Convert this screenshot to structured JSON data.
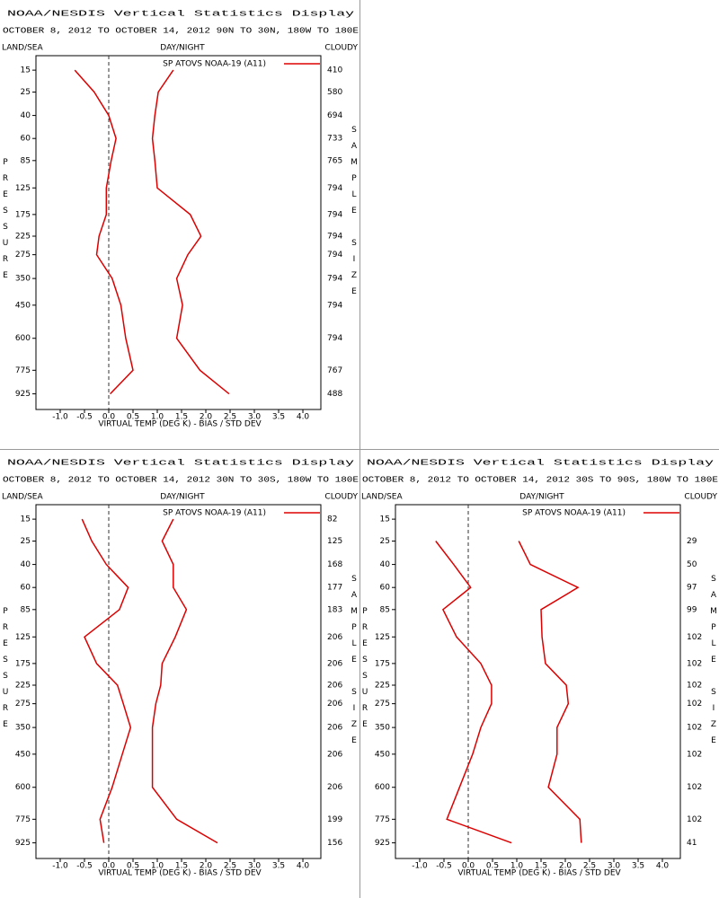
{
  "chart_data": [
    {
      "type": "line",
      "title": "NOAA/NESDIS Vertical Statistics Display",
      "subtitle": "OCTOBER 8, 2012 TO OCTOBER 14, 2012 90N TO 30N, 180W TO 180E",
      "land_sea": "LAND/SEA",
      "day_night": "DAY/NIGHT",
      "cloudy": "CLOUDY",
      "y_label": "PRESSURE",
      "y2_label": "SAMPLE SIZE",
      "x_label": "VIRTUAL TEMP (DEG K) - BIAS / STD DEV",
      "categories": [
        15,
        25,
        40,
        60,
        85,
        125,
        175,
        225,
        275,
        350,
        450,
        600,
        775,
        925
      ],
      "sample_size": [
        410,
        580,
        694,
        733,
        765,
        794,
        794,
        794,
        794,
        794,
        794,
        794,
        767,
        488
      ],
      "series": [
        {
          "name": "SP ATOVS NOAA-19 (A11)",
          "color": "#dd0000",
          "bias": [
            -0.7,
            -0.3,
            0.0,
            0.15,
            0.05,
            -0.05,
            -0.05,
            -0.2,
            -0.25,
            0.07,
            0.25,
            0.35,
            0.5,
            0.03
          ],
          "std_dev": [
            1.33,
            1.02,
            0.95,
            0.9,
            0.95,
            1.0,
            1.68,
            1.9,
            1.63,
            1.4,
            1.52,
            1.4,
            1.88,
            2.48
          ]
        }
      ],
      "xlim": [
        -1.5,
        4.37
      ],
      "ylim": [
        10.2,
        1035
      ],
      "xticks": [
        {
          "value": -1,
          "label": "-1.0"
        },
        {
          "value": -0.5,
          "label": "-0.5"
        },
        {
          "value": 0,
          "label": "0.0"
        },
        {
          "value": 0.5,
          "label": "0.5"
        },
        {
          "value": 1,
          "label": "1.0"
        },
        {
          "value": 1.5,
          "label": "1.5"
        },
        {
          "value": 2,
          "label": "2.0"
        },
        {
          "value": 2.5,
          "label": "2.5"
        },
        {
          "value": 3,
          "label": "3.0"
        },
        {
          "value": 3.5,
          "label": "3.5"
        },
        {
          "value": 4,
          "label": "4.0"
        }
      ]
    },
    {
      "type": "line",
      "title": "NOAA/NESDIS Vertical Statistics Display",
      "subtitle": "OCTOBER 8, 2012 TO OCTOBER 14, 2012 30N TO 30S, 180W TO 180E",
      "land_sea": "LAND/SEA",
      "day_night": "DAY/NIGHT",
      "cloudy": "CLOUDY",
      "y_label": "PRESSURE",
      "y2_label": "SAMPLE SIZE",
      "x_label": "VIRTUAL TEMP (DEG K) - BIAS / STD DEV",
      "categories": [
        15,
        25,
        40,
        60,
        85,
        125,
        175,
        225,
        275,
        350,
        450,
        600,
        775,
        925
      ],
      "sample_size": [
        82,
        125,
        168,
        177,
        183,
        206,
        206,
        206,
        206,
        206,
        206,
        206,
        199,
        156
      ],
      "series": [
        {
          "name": "SP ATOVS NOAA-19 (A11)",
          "color": "#dd0000",
          "bias": [
            -0.55,
            -0.35,
            -0.05,
            0.4,
            0.22,
            -0.5,
            -0.25,
            0.18,
            0.3,
            0.45,
            0.28,
            0.07,
            -0.18,
            -0.1
          ],
          "std_dev": [
            1.33,
            1.1,
            1.33,
            1.33,
            1.6,
            1.37,
            1.1,
            1.07,
            0.97,
            0.9,
            0.9,
            0.9,
            1.4,
            2.24
          ]
        }
      ],
      "xlim": [
        -1.5,
        4.37
      ],
      "ylim": [
        10.2,
        1035
      ],
      "xticks": [
        {
          "value": -1,
          "label": "-1.0"
        },
        {
          "value": -0.5,
          "label": "-0.5"
        },
        {
          "value": 0,
          "label": "0.0"
        },
        {
          "value": 0.5,
          "label": "0.5"
        },
        {
          "value": 1,
          "label": "1.0"
        },
        {
          "value": 1.5,
          "label": "1.5"
        },
        {
          "value": 2,
          "label": "2.0"
        },
        {
          "value": 2.5,
          "label": "2.5"
        },
        {
          "value": 3,
          "label": "3.0"
        },
        {
          "value": 3.5,
          "label": "3.5"
        },
        {
          "value": 4,
          "label": "4.0"
        }
      ]
    },
    {
      "type": "line",
      "title": "NOAA/NESDIS Vertical Statistics Display",
      "subtitle": "OCTOBER 8, 2012 TO OCTOBER 14, 2012 30S TO 90S, 180W TO 180E",
      "land_sea": "LAND/SEA",
      "day_night": "DAY/NIGHT",
      "cloudy": "CLOUDY",
      "y_label": "PRESSURE",
      "y2_label": "SAMPLE SIZE",
      "x_label": "VIRTUAL TEMP (DEG K) - BIAS / STD DEV",
      "categories": [
        15,
        25,
        40,
        60,
        85,
        125,
        175,
        225,
        275,
        350,
        450,
        600,
        775,
        925
      ],
      "sample_size": [
        null,
        29,
        50,
        97,
        99,
        102,
        102,
        102,
        102,
        102,
        102,
        102,
        102,
        41
      ],
      "series": [
        {
          "name": "SP ATOVS NOAA-19 (A11)",
          "color": "#dd0000",
          "bias": [
            null,
            -0.67,
            -0.3,
            0.05,
            -0.52,
            -0.24,
            0.26,
            0.48,
            0.48,
            0.26,
            0.09,
            -0.18,
            -0.44,
            0.89
          ],
          "std_dev": [
            null,
            1.04,
            1.28,
            2.26,
            1.5,
            1.52,
            1.59,
            2.02,
            2.06,
            1.83,
            1.83,
            1.65,
            2.3,
            2.33
          ]
        }
      ],
      "xlim": [
        -1.5,
        4.37
      ],
      "ylim": [
        10.2,
        1035
      ],
      "xticks": [
        {
          "value": -1,
          "label": "-1.0"
        },
        {
          "value": -0.5,
          "label": "-0.5"
        },
        {
          "value": 0,
          "label": "0.0"
        },
        {
          "value": 0.5,
          "label": "0.5"
        },
        {
          "value": 1,
          "label": "1.0"
        },
        {
          "value": 1.5,
          "label": "1.5"
        },
        {
          "value": 2,
          "label": "2.0"
        },
        {
          "value": 2.5,
          "label": "2.5"
        },
        {
          "value": 3,
          "label": "3.0"
        },
        {
          "value": 3.5,
          "label": "3.5"
        },
        {
          "value": 4,
          "label": "4.0"
        }
      ]
    }
  ]
}
